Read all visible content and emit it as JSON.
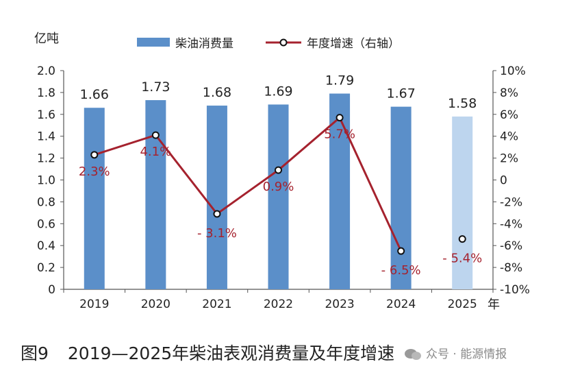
{
  "chart_data": {
    "type": "bar",
    "categories": [
      "2019",
      "2020",
      "2021",
      "2022",
      "2023",
      "2024",
      "2025"
    ],
    "series": [
      {
        "name": "柴油消费量",
        "axis": "left",
        "values": [
          1.66,
          1.73,
          1.68,
          1.69,
          1.79,
          1.67,
          1.58
        ],
        "labels": [
          "1.66",
          "1.73",
          "1.68",
          "1.69",
          "1.79",
          "1.67",
          "1.58"
        ],
        "color": "#5b8fc9",
        "highlight_last_color": "#bdd5ee"
      },
      {
        "name": "年度增速（右轴）",
        "axis": "right",
        "type": "line",
        "values": [
          2.3,
          4.1,
          -3.1,
          0.9,
          5.7,
          -6.5,
          -5.4
        ],
        "labels": [
          "2.3%",
          "4.1%",
          "- 3.1%",
          "0.9%",
          "5.7%",
          "- 6.5%",
          "- 5.4%"
        ],
        "color": "#a5222e",
        "line_points": 6
      }
    ],
    "ylabel_left": "亿吨",
    "xlabel": "年",
    "ylim_left": [
      0,
      2.0
    ],
    "yticks_left": [
      "0",
      "0.2",
      "0.4",
      "0.6",
      "0.8",
      "1.0",
      "1.2",
      "1.4",
      "1.6",
      "1.8",
      "2.0"
    ],
    "ylim_right": [
      -10,
      10
    ],
    "yticks_right": [
      "-10%",
      "-8%",
      "-6%",
      "-4%",
      "-2%",
      "0",
      "2%",
      "4%",
      "6%",
      "8%",
      "10%"
    ],
    "legend_position": "top-center",
    "grid": false
  },
  "caption": {
    "figure_number": "图9",
    "text": "2019—2025年柴油表观消费量及年度增速"
  },
  "watermark": "众号 · 能源情报"
}
